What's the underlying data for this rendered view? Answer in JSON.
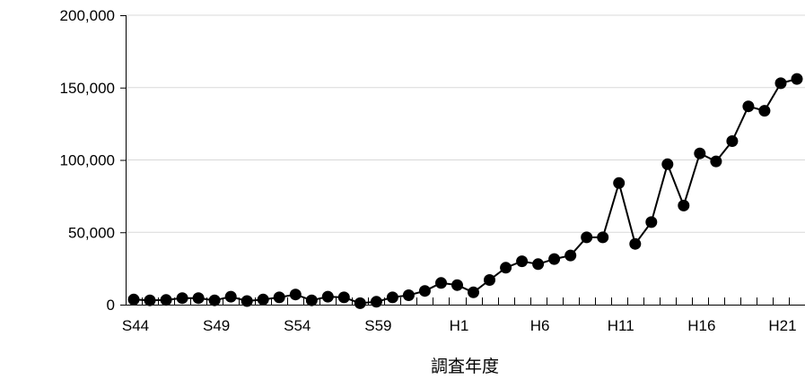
{
  "chart_data": {
    "type": "line",
    "title": "",
    "xlabel": "調査年度",
    "ylabel": "",
    "ylim": [
      0,
      200000
    ],
    "grid": true,
    "legend": "none",
    "x_tick_labels": [
      "S44",
      "S49",
      "S54",
      "S59",
      "H1",
      "H6",
      "H11",
      "H16",
      "H21"
    ],
    "y_tick_labels": [
      "0",
      "50,000",
      "100,000",
      "150,000",
      "200,000"
    ],
    "y_ticks": [
      0,
      50000,
      100000,
      150000,
      200000
    ],
    "x": [
      "S44",
      "S45",
      "S46",
      "S47",
      "S48",
      "S49",
      "S50",
      "S51",
      "S52",
      "S53",
      "S54",
      "S55",
      "S56",
      "S57",
      "S58",
      "S59",
      "S60",
      "S61",
      "S62",
      "S63",
      "H1",
      "H2",
      "H3",
      "H4",
      "H5",
      "H6",
      "H7",
      "H8",
      "H9",
      "H10",
      "H11",
      "H12",
      "H13",
      "H14",
      "H15",
      "H16",
      "H17",
      "H18",
      "H19",
      "H20",
      "H21",
      "H22"
    ],
    "series": [
      {
        "values": [
          3500,
          3000,
          3200,
          4500,
          4500,
          3000,
          5500,
          2500,
          3500,
          5000,
          7000,
          3000,
          5500,
          5000,
          1000,
          2000,
          5000,
          6500,
          9500,
          15000,
          13500,
          8500,
          17000,
          25500,
          30000,
          28000,
          31500,
          34000,
          46500,
          46500,
          84000,
          42000,
          57000,
          97000,
          68500,
          104500,
          99000,
          113000,
          137000,
          134000,
          153000,
          156000
        ]
      }
    ],
    "colors": {
      "line": "#000000",
      "marker": "#000000",
      "grid": "#d9d9d9",
      "axis": "#000000"
    }
  }
}
